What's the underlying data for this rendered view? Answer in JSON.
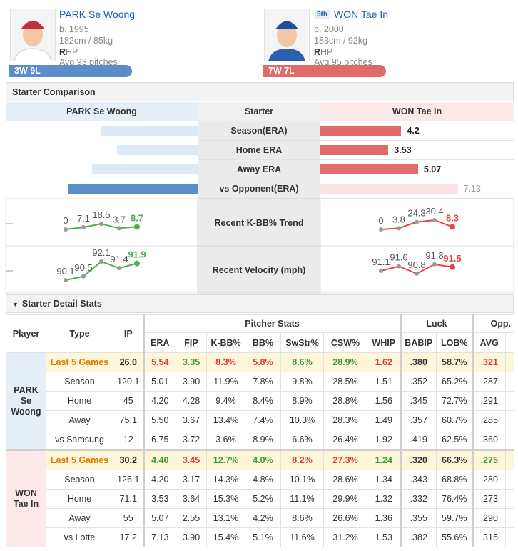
{
  "pitchers": [
    {
      "name": "PARK Se Woong",
      "born": "b. 1995",
      "body": "182cm / 85kg",
      "throws": "RHP",
      "avg_pitches": "Avg 93 pitches",
      "record": "3W 9L"
    },
    {
      "rank": "5th",
      "name": "WON Tae In",
      "born": "b. 2000",
      "body": "183cm / 92kg",
      "throws": "RHP",
      "avg_pitches": "Avg 95 pitches",
      "record": "7W 7L"
    }
  ],
  "comparison": {
    "title": "Starter Comparison",
    "middle_header": "Starter",
    "rows": [
      {
        "label": "Season(ERA)",
        "left": 5.01,
        "right": 4.2
      },
      {
        "label": "Home ERA",
        "left": 4.2,
        "right": 3.53
      },
      {
        "label": "Away ERA",
        "left": 5.5,
        "right": 5.07
      },
      {
        "label": "vs Opponent(ERA)",
        "left": 6.75,
        "right": 7.13
      }
    ],
    "trends": [
      {
        "label": "Recent K-BB% Trend",
        "left": [
          0,
          7.1,
          18.5,
          3.7,
          8.7
        ],
        "right": [
          0,
          3.8,
          24.3,
          30.4,
          8.3
        ]
      },
      {
        "label": "Recent Velocity (mph)",
        "left": [
          90.1,
          90.5,
          92.1,
          91.4,
          91.9
        ],
        "right": [
          91.1,
          91.6,
          90.8,
          91.8,
          91.5
        ]
      }
    ]
  },
  "detail": {
    "title": "Starter Detail Stats",
    "fixed_columns": [
      "Player",
      "Type",
      "IP"
    ],
    "groups": [
      {
        "name": "Pitcher Stats",
        "columns": [
          "ERA",
          "FIP",
          "K-BB%",
          "BB%",
          "SwStr%",
          "CSW%",
          "WHIP"
        ]
      },
      {
        "name": "Luck",
        "columns": [
          "BABIP",
          "LOB%"
        ]
      },
      {
        "name": "Opp.",
        "columns": [
          "AVG"
        ]
      }
    ],
    "players": [
      {
        "rows": [
          [
            "Last 5 Games",
            "26.0",
            "5.54",
            "3.35",
            "8.3%",
            "5.8%",
            "8.6%",
            "28.9%",
            "1.62",
            ".380",
            "58.7%",
            ".321"
          ],
          [
            "Season",
            "120.1",
            "5.01",
            "3.90",
            "11.9%",
            "7.8%",
            "9.8%",
            "28.5%",
            "1.51",
            ".352",
            "65.2%",
            ".287"
          ],
          [
            "Home",
            "45",
            "4.20",
            "4.28",
            "9.4%",
            "8.4%",
            "8.9%",
            "28.8%",
            "1.56",
            ".345",
            "72.7%",
            ".291"
          ],
          [
            "Away",
            "75.1",
            "5.50",
            "3.67",
            "13.4%",
            "7.4%",
            "10.3%",
            "28.3%",
            "1.49",
            ".357",
            "60.7%",
            ".285"
          ],
          [
            "vs Samsung",
            "12",
            "6.75",
            "3.72",
            "3.6%",
            "8.9%",
            "6.6%",
            "26.4%",
            "1.92",
            ".419",
            "62.5%",
            ".360"
          ]
        ]
      },
      {
        "rows": [
          [
            "Last 5 Games",
            "30.2",
            "4.40",
            "3.45",
            "12.7%",
            "4.0%",
            "8.2%",
            "27.3%",
            "1.24",
            ".320",
            "66.3%",
            ".275"
          ],
          [
            "Season",
            "126.1",
            "4.20",
            "3.17",
            "14.3%",
            "4.8%",
            "10.1%",
            "28.6%",
            "1.34",
            ".343",
            "68.8%",
            ".280"
          ],
          [
            "Home",
            "71.1",
            "3.53",
            "3.64",
            "15.3%",
            "5.2%",
            "11.1%",
            "29.9%",
            "1.32",
            ".332",
            "76.4%",
            ".273"
          ],
          [
            "Away",
            "55",
            "5.07",
            "2.55",
            "13.1%",
            "4.2%",
            "8.6%",
            "26.6%",
            "1.36",
            ".355",
            "59.7%",
            ".290"
          ],
          [
            "vs Lotte",
            "17.2",
            "7.13",
            "3.90",
            "15.4%",
            "5.1%",
            "11.6%",
            "31.2%",
            "1.53",
            ".382",
            "55.6%",
            ".315"
          ]
        ]
      }
    ]
  }
}
